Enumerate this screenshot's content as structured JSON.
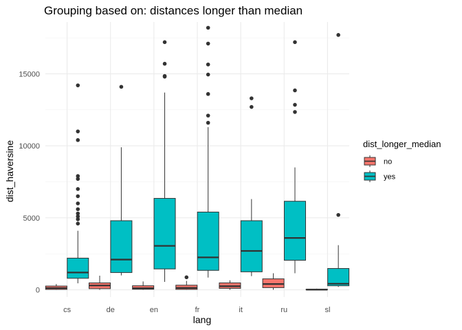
{
  "chart_data": {
    "type": "boxplot",
    "title": "Grouping based on: distances longer than median",
    "xlabel": "lang",
    "ylabel": "dist_haversine",
    "categories": [
      "cs",
      "de",
      "en",
      "fr",
      "it",
      "ru",
      "sl"
    ],
    "y_ticks": [
      0,
      5000,
      10000,
      15000
    ],
    "y_tick_labels": [
      "0",
      "5000",
      "10000",
      "15000"
    ],
    "ylim": [
      -500,
      18600
    ],
    "grid": true,
    "legend": {
      "title": "dist_longer_median",
      "position": "right",
      "entries": [
        {
          "label": "no",
          "color": "#F8766D"
        },
        {
          "label": "yes",
          "color": "#00BFC4"
        }
      ]
    },
    "series": [
      {
        "name": "no",
        "color": "#F8766D",
        "boxes": [
          {
            "category": "cs",
            "min": 0,
            "q1": 30,
            "median": 120,
            "q3": 260,
            "max": 400,
            "outliers": []
          },
          {
            "category": "de",
            "min": 0,
            "q1": 80,
            "median": 300,
            "q3": 480,
            "max": 980,
            "outliers": []
          },
          {
            "category": "en",
            "min": 0,
            "q1": 40,
            "median": 110,
            "q3": 280,
            "max": 580,
            "outliers": []
          },
          {
            "category": "fr",
            "min": 0,
            "q1": 30,
            "median": 130,
            "q3": 320,
            "max": 620,
            "outliers": [
              870
            ]
          },
          {
            "category": "it",
            "min": 0,
            "q1": 100,
            "median": 250,
            "q3": 480,
            "max": 660,
            "outliers": []
          },
          {
            "category": "ru",
            "min": 0,
            "q1": 150,
            "median": 400,
            "q3": 760,
            "max": 1150,
            "outliers": []
          },
          {
            "category": "sl",
            "min": 0,
            "q1": 0,
            "median": 10,
            "q3": 40,
            "max": 80,
            "outliers": []
          }
        ]
      },
      {
        "name": "yes",
        "color": "#00BFC4",
        "boxes": [
          {
            "category": "cs",
            "min": 450,
            "q1": 800,
            "median": 1200,
            "q3": 2200,
            "max": 4100,
            "outliers": [
              4600,
              4900,
              5100,
              5300,
              5600,
              6000,
              6500,
              7000,
              7700,
              7900,
              10400,
              11000,
              14200
            ]
          },
          {
            "category": "de",
            "min": 1000,
            "q1": 1200,
            "median": 2100,
            "q3": 4800,
            "max": 9900,
            "outliers": [
              14100
            ]
          },
          {
            "category": "en",
            "min": 550,
            "q1": 1450,
            "median": 3050,
            "q3": 6350,
            "max": 13700,
            "outliers": [
              14800,
              14850,
              15700,
              17200
            ]
          },
          {
            "category": "fr",
            "min": 850,
            "q1": 1350,
            "median": 2250,
            "q3": 5400,
            "max": 11300,
            "outliers": [
              11600,
              12100,
              13600,
              14950,
              15650,
              17100,
              18200
            ]
          },
          {
            "category": "it",
            "min": 950,
            "q1": 1250,
            "median": 2700,
            "q3": 4800,
            "max": 6300,
            "outliers": [
              12700,
              13300
            ]
          },
          {
            "category": "ru",
            "min": 1150,
            "q1": 2050,
            "median": 3600,
            "q3": 6150,
            "max": 8500,
            "outliers": [
              12350,
              12850,
              13850,
              17200
            ]
          },
          {
            "category": "sl",
            "min": 200,
            "q1": 280,
            "median": 420,
            "q3": 1480,
            "max": 3100,
            "outliers": [
              5200,
              17700
            ]
          }
        ]
      }
    ]
  }
}
